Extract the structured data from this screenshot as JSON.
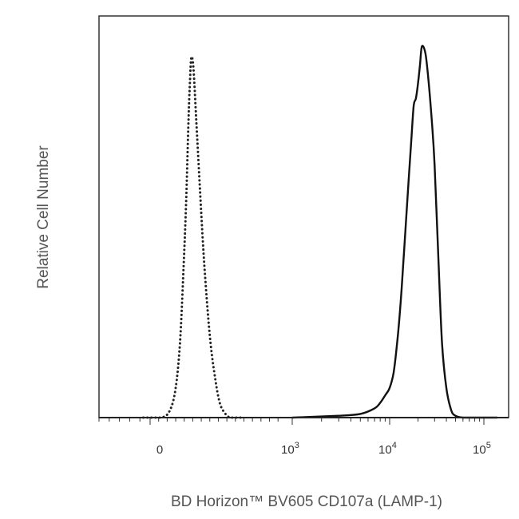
{
  "chart_data": {
    "type": "line",
    "title": "",
    "xlabel": "BD Horizon™ BV605 CD107a (LAMP-1)",
    "ylabel": "Relative Cell Number",
    "x_scale": "biexponential",
    "xlim": [
      -300,
      140000
    ],
    "ylim": [
      0,
      1.0
    ],
    "x_ticks": [
      {
        "value": 0,
        "label": "0"
      },
      {
        "value": 1000,
        "base": "10",
        "exp": "3"
      },
      {
        "value": 10000,
        "base": "10",
        "exp": "4"
      },
      {
        "value": 100000,
        "base": "10",
        "exp": "5"
      }
    ],
    "grid": false,
    "legend": "none",
    "series": [
      {
        "style": "dotted",
        "color": "#222222",
        "x": [
          -40,
          80,
          140,
          180,
          210,
          235,
          255,
          270,
          280,
          290,
          305,
          325,
          350,
          380,
          420,
          460,
          490,
          520,
          560,
          600,
          650
        ],
        "y": [
          0.0,
          0.0,
          0.02,
          0.08,
          0.2,
          0.4,
          0.6,
          0.8,
          0.9,
          0.97,
          0.94,
          0.8,
          0.62,
          0.42,
          0.22,
          0.1,
          0.04,
          0.015,
          0.0,
          0.0,
          0.0
        ]
      },
      {
        "style": "solid",
        "color": "#111111",
        "x": [
          1000,
          3000,
          5000,
          7000,
          8000,
          9000,
          10000,
          11000,
          12000,
          13000,
          14000,
          15000,
          16000,
          17000,
          18000,
          19000,
          20000,
          21000,
          22000,
          24000,
          26000,
          28000,
          30000,
          33000,
          36000,
          40000,
          45000,
          50000,
          60000,
          80000,
          120000
        ],
        "y": [
          0.0,
          0.005,
          0.01,
          0.025,
          0.04,
          0.06,
          0.08,
          0.12,
          0.2,
          0.3,
          0.42,
          0.54,
          0.65,
          0.75,
          0.84,
          0.86,
          0.9,
          0.95,
          1.0,
          0.98,
          0.9,
          0.8,
          0.68,
          0.42,
          0.2,
          0.08,
          0.02,
          0.005,
          0.0,
          0.0,
          0.0
        ]
      }
    ]
  }
}
